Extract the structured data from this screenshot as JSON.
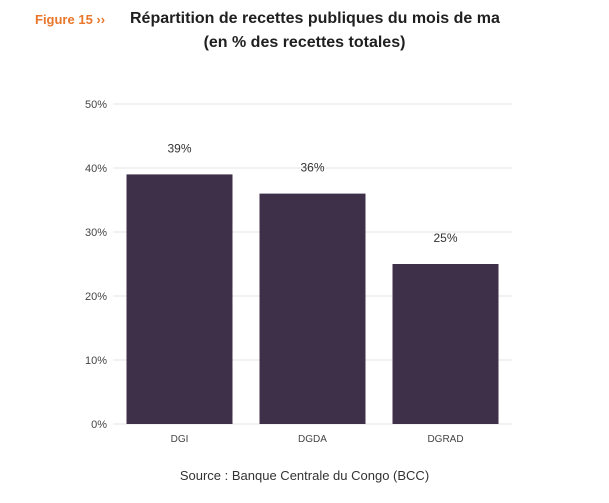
{
  "header": {
    "figure_label": "Figure 15 ››",
    "title": "Répartition de recettes publiques du mois de ma",
    "subtitle": "(en % des recettes totales)"
  },
  "footer": {
    "source": "Source : Banque Centrale du Congo (BCC)"
  },
  "colors": {
    "bar": "#3f3049",
    "figure_label": "#e8762b",
    "grid": "#e6e6e6",
    "axis_text": "#444444"
  },
  "chart_data": {
    "type": "bar",
    "categories": [
      "DGI",
      "DGDA",
      "DGRAD"
    ],
    "values": [
      39,
      36,
      25
    ],
    "data_labels": [
      "39%",
      "36%",
      "25%"
    ],
    "ylim": [
      0,
      50
    ],
    "yticks": [
      0,
      10,
      20,
      30,
      40,
      50
    ],
    "ytick_labels": [
      "0%",
      "10%",
      "20%",
      "30%",
      "40%",
      "50%"
    ],
    "grid": true,
    "legend": "none",
    "title": "Répartition de recettes publiques du mois de ma",
    "xlabel": "",
    "ylabel": ""
  }
}
